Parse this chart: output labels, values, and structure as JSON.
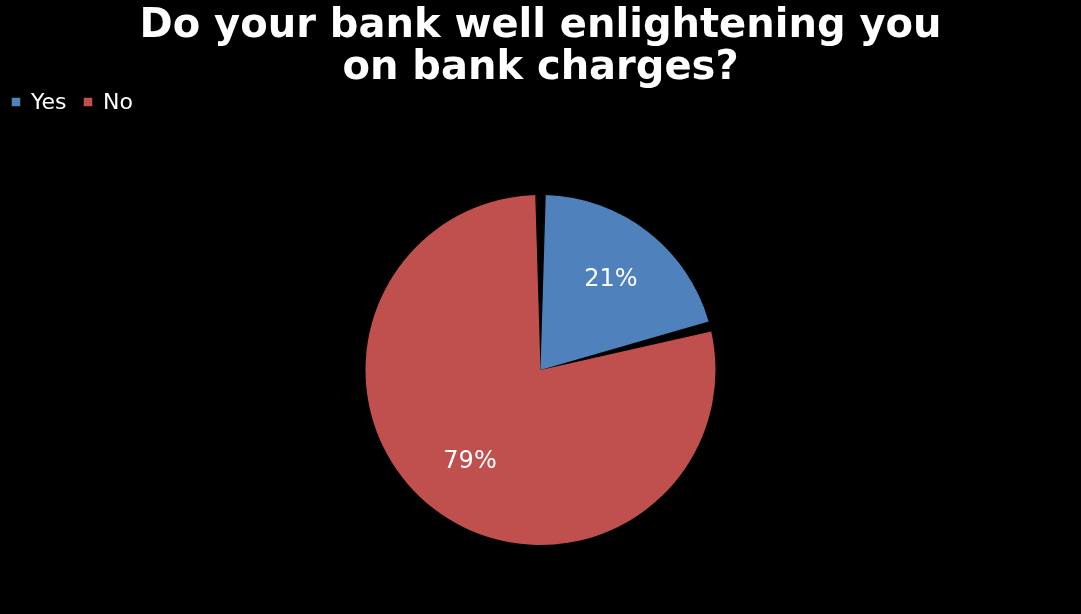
{
  "chart_data": {
    "type": "pie",
    "title": "Do your bank well enlightening you on bank charges?",
    "categories": [
      "Yes",
      "No"
    ],
    "values": [
      21,
      79
    ],
    "colors": [
      "#4f81bd",
      "#c0504d"
    ],
    "value_labels": [
      "21%",
      "79%"
    ],
    "legend": "top"
  }
}
